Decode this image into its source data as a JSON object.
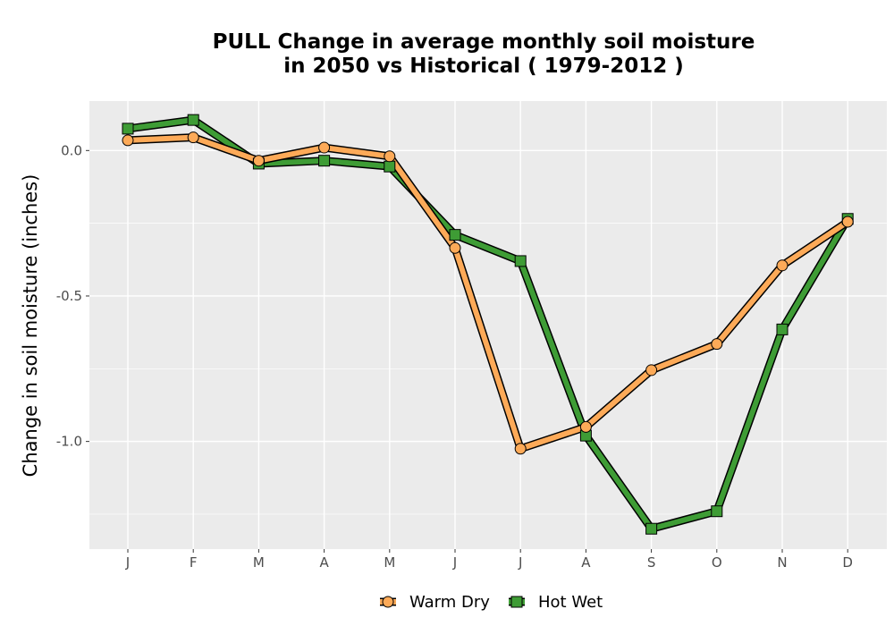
{
  "chart_data": {
    "type": "line",
    "title_line1": "PULL  Change in average monthly soil moisture",
    "title_line2": "in 2050 vs Historical ( 1979-2012 )",
    "xlabel": "",
    "ylabel": "Change in soil moisture (inches)",
    "categories": [
      "J",
      "F",
      "M",
      "A",
      "M",
      "J",
      "J",
      "A",
      "S",
      "O",
      "N",
      "D"
    ],
    "y_ticks": [
      0.0,
      -0.5,
      -1.0
    ],
    "y_tick_labels": [
      "0.0",
      "-0.5",
      "-1.0"
    ],
    "ylim": [
      -1.37,
      0.17
    ],
    "grid": true,
    "legend_position": "bottom",
    "series": [
      {
        "name": "Warm Dry",
        "color": "#FDAA58",
        "marker": "circle",
        "values": [
          0.035,
          0.045,
          -0.035,
          0.01,
          -0.02,
          -0.335,
          -1.025,
          -0.95,
          -0.755,
          -0.665,
          -0.395,
          -0.245
        ]
      },
      {
        "name": "Hot Wet",
        "color": "#3E9C35",
        "marker": "square",
        "values": [
          0.075,
          0.105,
          -0.045,
          -0.035,
          -0.055,
          -0.29,
          -0.38,
          -0.98,
          -1.3,
          -1.24,
          -0.615,
          -0.235
        ]
      }
    ]
  }
}
